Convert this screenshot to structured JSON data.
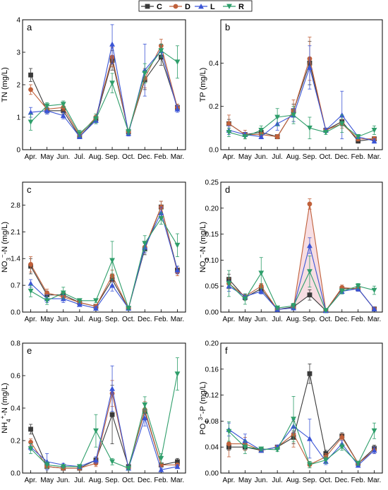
{
  "legend": [
    {
      "name": "C",
      "color": "#3a3a3a",
      "marker": "square"
    },
    {
      "name": "D",
      "color": "#c0603a",
      "marker": "circle"
    },
    {
      "name": "L",
      "color": "#3b55d6",
      "marker": "triangle-up"
    },
    {
      "name": "R",
      "color": "#2e9e6a",
      "marker": "triangle-down"
    }
  ],
  "months": [
    "Apr.",
    "May",
    "Jun.",
    "Jul.",
    "Aug.",
    "Sep.",
    "Oct.",
    "Dec.",
    "Feb.",
    "Mar."
  ],
  "chart_data": [
    {
      "type": "line",
      "panel": "a",
      "ylabel": "TN (mg/L)",
      "ylim": [
        0,
        4
      ],
      "yticks": [
        0,
        1,
        2,
        3,
        4
      ],
      "ytick_labels": [
        "0",
        "1",
        "2",
        "3",
        "4"
      ],
      "series": [
        {
          "name": "C",
          "values": [
            2.3,
            1.2,
            1.2,
            0.4,
            0.95,
            2.75,
            0.55,
            2.15,
            2.85,
            1.3
          ],
          "err": [
            0.2,
            0.1,
            0.1,
            0.05,
            0.1,
            0.3,
            0.08,
            0.3,
            0.25,
            0.1
          ]
        },
        {
          "name": "D",
          "values": [
            1.85,
            1.25,
            1.3,
            0.45,
            1.0,
            2.85,
            0.55,
            2.2,
            3.2,
            1.3
          ],
          "err": [
            0.15,
            0.1,
            0.1,
            0.05,
            0.1,
            0.3,
            0.08,
            0.3,
            0.2,
            0.1
          ]
        },
        {
          "name": "L",
          "values": [
            1.15,
            1.2,
            1.05,
            0.4,
            0.9,
            3.25,
            0.5,
            2.45,
            3.05,
            1.25
          ],
          "err": [
            0.15,
            0.1,
            0.1,
            0.05,
            0.1,
            0.6,
            0.08,
            0.8,
            0.2,
            0.1
          ]
        },
        {
          "name": "R",
          "values": [
            0.85,
            1.35,
            1.4,
            0.5,
            0.95,
            2.05,
            0.55,
            2.35,
            3.05,
            2.7
          ],
          "err": [
            0.25,
            0.1,
            0.1,
            0.1,
            0.15,
            0.3,
            0.08,
            0.3,
            0.2,
            0.5
          ]
        }
      ]
    },
    {
      "type": "line",
      "panel": "b",
      "ylabel": "TP (mg/L)",
      "ylim": [
        0,
        0.6
      ],
      "yticks": [
        0,
        0.2,
        0.4
      ],
      "ytick_labels": [
        "0.0",
        "0.2",
        "0.4"
      ],
      "series": [
        {
          "name": "C",
          "values": [
            0.12,
            0.07,
            0.08,
            0.06,
            0.18,
            0.4,
            0.09,
            0.13,
            0.04,
            0.05
          ],
          "err": [
            0.02,
            0.01,
            0.01,
            0.01,
            0.03,
            0.1,
            0.01,
            0.02,
            0.01,
            0.01
          ]
        },
        {
          "name": "D",
          "values": [
            0.12,
            0.07,
            0.07,
            0.06,
            0.18,
            0.42,
            0.09,
            0.12,
            0.05,
            0.05
          ],
          "err": [
            0.04,
            0.02,
            0.01,
            0.01,
            0.05,
            0.1,
            0.01,
            0.02,
            0.01,
            0.01
          ]
        },
        {
          "name": "L",
          "values": [
            0.09,
            0.07,
            0.06,
            0.12,
            0.16,
            0.38,
            0.09,
            0.16,
            0.06,
            0.04
          ],
          "err": [
            0.02,
            0.01,
            0.01,
            0.03,
            0.03,
            0.1,
            0.01,
            0.11,
            0.01,
            0.01
          ]
        },
        {
          "name": "R",
          "values": [
            0.08,
            0.06,
            0.09,
            0.15,
            0.16,
            0.1,
            0.08,
            0.12,
            0.06,
            0.09
          ],
          "err": [
            0.02,
            0.01,
            0.02,
            0.04,
            0.04,
            0.05,
            0.01,
            0.04,
            0.01,
            0.02
          ]
        }
      ]
    },
    {
      "type": "line",
      "panel": "c",
      "ylabel": "NO3−-N (mg/L)",
      "ylim": [
        0,
        3.4
      ],
      "yticks": [
        0,
        0.7,
        1.4,
        2.1,
        2.8
      ],
      "ytick_labels": [
        "0.0",
        "0.7",
        "1.4",
        "2.1",
        "2.8"
      ],
      "series": [
        {
          "name": "C",
          "values": [
            1.2,
            0.45,
            0.45,
            0.25,
            0.15,
            0.85,
            0.1,
            1.65,
            2.75,
            1.1
          ],
          "err": [
            0.2,
            0.1,
            0.1,
            0.05,
            0.05,
            0.15,
            0.03,
            0.15,
            0.15,
            0.1
          ]
        },
        {
          "name": "D",
          "values": [
            1.25,
            0.5,
            0.4,
            0.25,
            0.15,
            0.95,
            0.1,
            1.7,
            2.75,
            1.05
          ],
          "err": [
            0.2,
            0.1,
            0.1,
            0.05,
            0.05,
            0.15,
            0.03,
            0.15,
            0.15,
            0.1
          ]
        },
        {
          "name": "L",
          "values": [
            0.75,
            0.35,
            0.35,
            0.2,
            0.1,
            0.7,
            0.1,
            1.7,
            2.6,
            1.1
          ],
          "err": [
            0.1,
            0.1,
            0.1,
            0.05,
            0.05,
            0.15,
            0.03,
            0.15,
            0.15,
            0.1
          ]
        },
        {
          "name": "R",
          "values": [
            0.55,
            0.3,
            0.5,
            0.3,
            0.3,
            1.35,
            0.1,
            1.8,
            2.45,
            1.75
          ],
          "err": [
            0.15,
            0.1,
            0.15,
            0.05,
            0.05,
            0.5,
            0.03,
            0.2,
            0.15,
            0.3
          ]
        }
      ]
    },
    {
      "type": "line",
      "panel": "d",
      "ylabel": "NO2−-N (mg/L)",
      "ylim": [
        0,
        0.25
      ],
      "yticks": [
        0,
        0.05,
        0.1,
        0.15,
        0.2,
        0.25
      ],
      "ytick_labels": [
        "0.00",
        "0.05",
        "0.10",
        "0.15",
        "0.20",
        "0.25"
      ],
      "series": [
        {
          "name": "C",
          "values": [
            0.063,
            0.028,
            0.045,
            0.005,
            0.01,
            0.033,
            0.003,
            0.045,
            0.045,
            0.006
          ],
          "err": [
            0.01,
            0.005,
            0.005,
            0.002,
            0.003,
            0.01,
            0.001,
            0.005,
            0.005,
            0.001
          ]
        },
        {
          "name": "D",
          "values": [
            0.055,
            0.03,
            0.05,
            0.005,
            0.008,
            0.208,
            0.003,
            0.047,
            0.045,
            0.006
          ],
          "err": [
            0.01,
            0.005,
            0.005,
            0.002,
            0.003,
            0.01,
            0.001,
            0.005,
            0.005,
            0.001
          ]
        },
        {
          "name": "L",
          "values": [
            0.05,
            0.03,
            0.04,
            0.005,
            0.008,
            0.128,
            0.003,
            0.04,
            0.045,
            0.006
          ],
          "err": [
            0.01,
            0.005,
            0.005,
            0.002,
            0.003,
            0.015,
            0.001,
            0.005,
            0.005,
            0.001
          ]
        },
        {
          "name": "R",
          "values": [
            0.055,
            0.025,
            0.075,
            0.008,
            0.012,
            0.078,
            0.003,
            0.04,
            0.05,
            0.042
          ],
          "err": [
            0.025,
            0.01,
            0.03,
            0.003,
            0.005,
            0.03,
            0.001,
            0.005,
            0.005,
            0.008
          ]
        }
      ]
    },
    {
      "type": "line",
      "panel": "e",
      "ylabel": "NH4+-N (mg/L)",
      "ylim": [
        0,
        0.8
      ],
      "yticks": [
        0,
        0.2,
        0.4,
        0.6,
        0.8
      ],
      "ytick_labels": [
        "0.0",
        "0.2",
        "0.4",
        "0.6",
        "0.8"
      ],
      "series": [
        {
          "name": "C",
          "values": [
            0.27,
            0.04,
            0.03,
            0.03,
            0.08,
            0.36,
            0.04,
            0.38,
            0.05,
            0.07
          ],
          "err": [
            0.03,
            0.01,
            0.01,
            0.01,
            0.02,
            0.18,
            0.01,
            0.05,
            0.01,
            0.02
          ]
        },
        {
          "name": "D",
          "values": [
            0.19,
            0.04,
            0.03,
            0.03,
            0.06,
            0.49,
            0.03,
            0.39,
            0.05,
            0.05
          ],
          "err": [
            0.02,
            0.01,
            0.01,
            0.01,
            0.02,
            0.08,
            0.01,
            0.05,
            0.01,
            0.01
          ]
        },
        {
          "name": "L",
          "values": [
            0.16,
            0.07,
            0.05,
            0.04,
            0.08,
            0.52,
            0.03,
            0.34,
            0.02,
            0.04
          ],
          "err": [
            0.02,
            0.05,
            0.01,
            0.01,
            0.02,
            0.14,
            0.01,
            0.05,
            0.01,
            0.01
          ]
        },
        {
          "name": "R",
          "values": [
            0.15,
            0.05,
            0.04,
            0.04,
            0.26,
            0.07,
            0.03,
            0.42,
            0.09,
            0.61
          ],
          "err": [
            0.03,
            0.02,
            0.01,
            0.01,
            0.1,
            0.02,
            0.01,
            0.05,
            0.03,
            0.1
          ]
        }
      ]
    },
    {
      "type": "line",
      "panel": "f",
      "ylabel": "PO43−-P (mg/L)",
      "ylim": [
        0,
        0.2
      ],
      "yticks": [
        0,
        0.04,
        0.08,
        0.12,
        0.16,
        0.2
      ],
      "ytick_labels": [
        "0.00",
        "0.04",
        "0.08",
        "0.12",
        "0.16",
        "0.20"
      ],
      "series": [
        {
          "name": "C",
          "values": [
            0.04,
            0.04,
            0.035,
            0.04,
            0.055,
            0.153,
            0.03,
            0.057,
            0.015,
            0.038
          ],
          "err": [
            0.005,
            0.005,
            0.003,
            0.003,
            0.01,
            0.015,
            0.005,
            0.005,
            0.003,
            0.005
          ]
        },
        {
          "name": "D",
          "values": [
            0.045,
            0.045,
            0.035,
            0.04,
            0.06,
            0.013,
            0.025,
            0.055,
            0.015,
            0.035
          ],
          "err": [
            0.02,
            0.01,
            0.003,
            0.003,
            0.02,
            0.005,
            0.005,
            0.005,
            0.003,
            0.005
          ]
        },
        {
          "name": "L",
          "values": [
            0.067,
            0.05,
            0.035,
            0.04,
            0.072,
            0.053,
            0.018,
            0.045,
            0.012,
            0.035
          ],
          "err": [
            0.01,
            0.01,
            0.003,
            0.003,
            0.01,
            0.03,
            0.005,
            0.005,
            0.003,
            0.005
          ]
        },
        {
          "name": "R",
          "values": [
            0.064,
            0.04,
            0.037,
            0.036,
            0.083,
            0.013,
            0.02,
            0.04,
            0.015,
            0.065
          ],
          "err": [
            0.015,
            0.01,
            0.003,
            0.003,
            0.035,
            0.005,
            0.005,
            0.005,
            0.003,
            0.012
          ]
        }
      ]
    }
  ]
}
